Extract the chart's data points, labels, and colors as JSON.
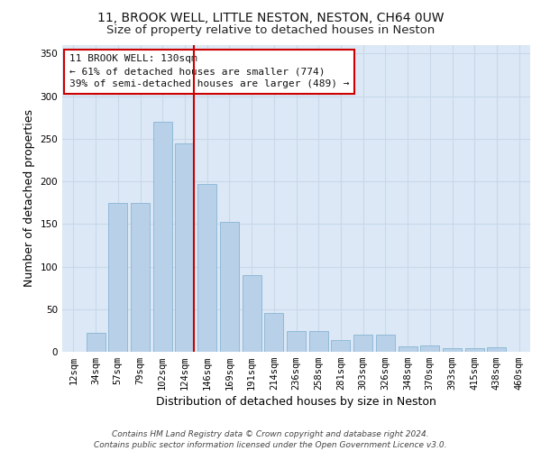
{
  "title_line1": "11, BROOK WELL, LITTLE NESTON, NESTON, CH64 0UW",
  "title_line2": "Size of property relative to detached houses in Neston",
  "xlabel": "Distribution of detached houses by size in Neston",
  "ylabel": "Number of detached properties",
  "footer_line1": "Contains HM Land Registry data © Crown copyright and database right 2024.",
  "footer_line2": "Contains public sector information licensed under the Open Government Licence v3.0.",
  "annotation_line1": "11 BROOK WELL: 130sqm",
  "annotation_line2": "← 61% of detached houses are smaller (774)",
  "annotation_line3": "39% of semi-detached houses are larger (489) →",
  "bar_color": "#b8d0e8",
  "bar_edge_color": "#7aaed0",
  "grid_color": "#c8d8ea",
  "background_color": "#dce8f5",
  "marker_color": "#cc0000",
  "categories": [
    "12sqm",
    "34sqm",
    "57sqm",
    "79sqm",
    "102sqm",
    "124sqm",
    "146sqm",
    "169sqm",
    "191sqm",
    "214sqm",
    "236sqm",
    "258sqm",
    "281sqm",
    "303sqm",
    "326sqm",
    "348sqm",
    "370sqm",
    "393sqm",
    "415sqm",
    "438sqm",
    "460sqm"
  ],
  "values": [
    0,
    22,
    175,
    175,
    270,
    245,
    197,
    152,
    90,
    46,
    24,
    24,
    14,
    20,
    20,
    6,
    7,
    4,
    4,
    5,
    0
  ],
  "ylim": [
    0,
    360
  ],
  "yticks": [
    0,
    50,
    100,
    150,
    200,
    250,
    300,
    350
  ],
  "title_fontsize": 10,
  "subtitle_fontsize": 9.5,
  "axis_label_fontsize": 9,
  "tick_fontsize": 7.5,
  "annotation_fontsize": 8,
  "footer_fontsize": 6.5
}
